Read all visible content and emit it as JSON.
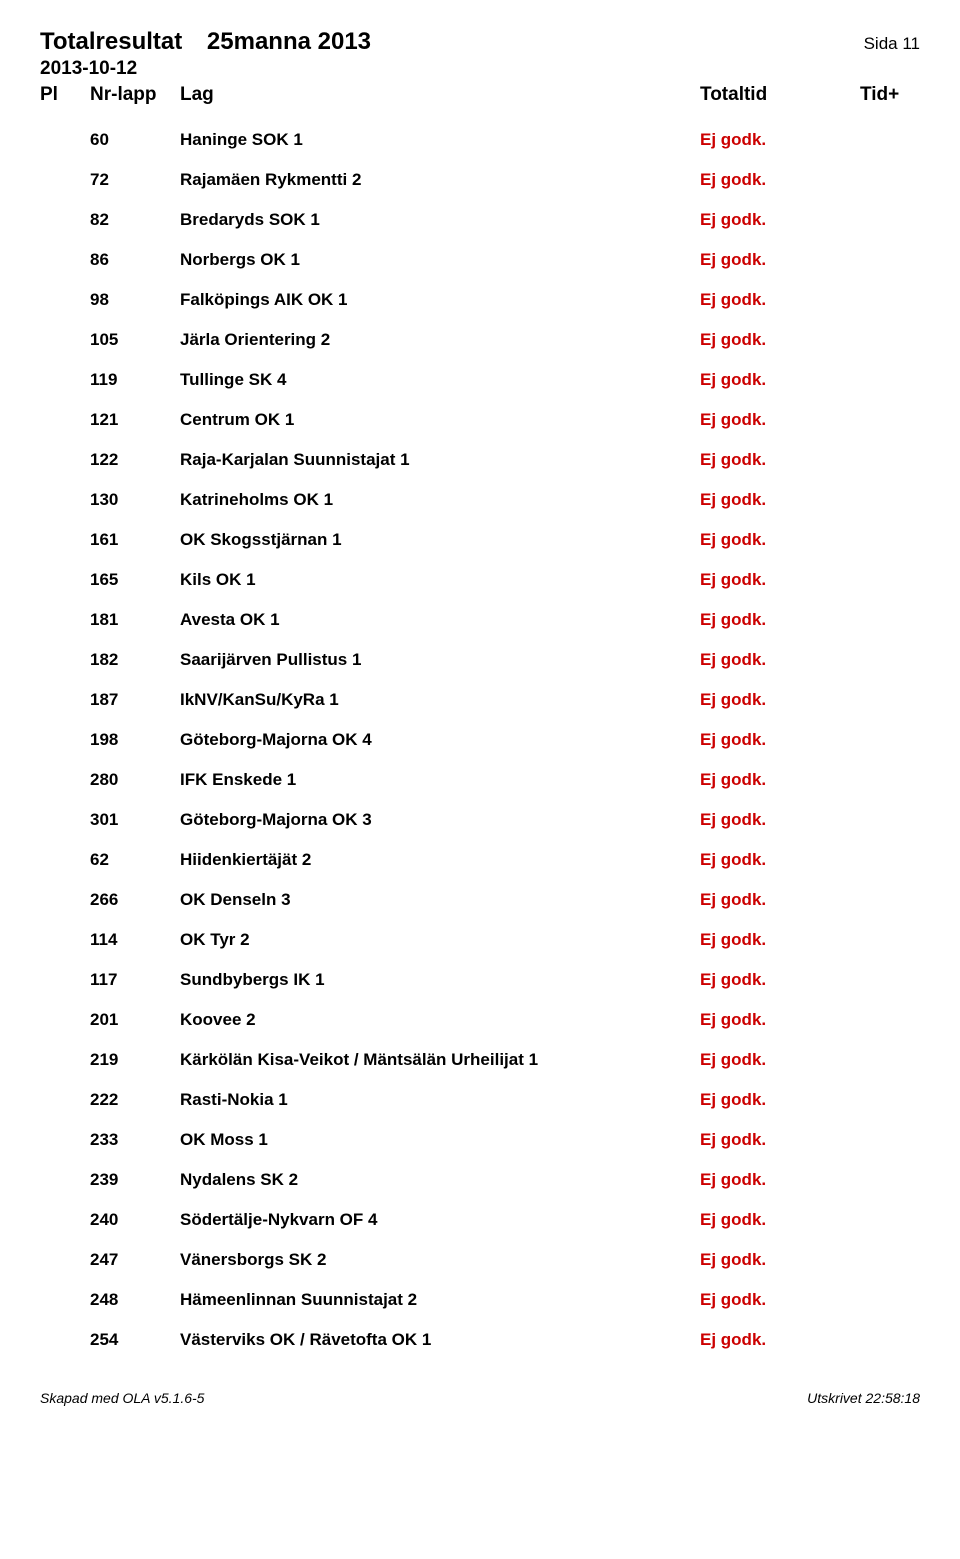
{
  "header": {
    "title_left": "Totalresultat",
    "title_right": "25manna 2013",
    "page_label": "Sida 11",
    "date": "2013-10-12"
  },
  "columns": {
    "pl": "Pl",
    "nr": "Nr-lapp",
    "lag": "Lag",
    "tot": "Totaltid",
    "tid": "Tid+"
  },
  "status_color": "#cc0000",
  "rows": [
    {
      "nr": "60",
      "lag": "Haninge SOK 1",
      "tot": "Ej godk."
    },
    {
      "nr": "72",
      "lag": "Rajamäen Rykmentti 2",
      "tot": "Ej godk."
    },
    {
      "nr": "82",
      "lag": "Bredaryds SOK 1",
      "tot": "Ej godk."
    },
    {
      "nr": "86",
      "lag": "Norbergs OK 1",
      "tot": "Ej godk."
    },
    {
      "nr": "98",
      "lag": "Falköpings AIK OK 1",
      "tot": "Ej godk."
    },
    {
      "nr": "105",
      "lag": "Järla Orientering 2",
      "tot": "Ej godk."
    },
    {
      "nr": "119",
      "lag": "Tullinge SK 4",
      "tot": "Ej godk."
    },
    {
      "nr": "121",
      "lag": "Centrum OK 1",
      "tot": "Ej godk."
    },
    {
      "nr": "122",
      "lag": "Raja-Karjalan Suunnistajat 1",
      "tot": "Ej godk."
    },
    {
      "nr": "130",
      "lag": "Katrineholms OK 1",
      "tot": "Ej godk."
    },
    {
      "nr": "161",
      "lag": "OK Skogsstjärnan 1",
      "tot": "Ej godk."
    },
    {
      "nr": "165",
      "lag": "Kils OK 1",
      "tot": "Ej godk."
    },
    {
      "nr": "181",
      "lag": "Avesta OK 1",
      "tot": "Ej godk."
    },
    {
      "nr": "182",
      "lag": "Saarijärven Pullistus 1",
      "tot": "Ej godk."
    },
    {
      "nr": "187",
      "lag": "IkNV/KanSu/KyRa  1",
      "tot": "Ej godk."
    },
    {
      "nr": "198",
      "lag": "Göteborg-Majorna OK 4",
      "tot": "Ej godk."
    },
    {
      "nr": "280",
      "lag": "IFK Enskede 1",
      "tot": "Ej godk."
    },
    {
      "nr": "301",
      "lag": "Göteborg-Majorna OK 3",
      "tot": "Ej godk."
    },
    {
      "nr": "62",
      "lag": "Hiidenkiertäjät 2",
      "tot": "Ej godk."
    },
    {
      "nr": "266",
      "lag": "OK Denseln 3",
      "tot": "Ej godk."
    },
    {
      "nr": "114",
      "lag": "OK Tyr 2",
      "tot": "Ej godk."
    },
    {
      "nr": "117",
      "lag": "Sundbybergs IK 1",
      "tot": "Ej godk."
    },
    {
      "nr": "201",
      "lag": "Koovee 2",
      "tot": "Ej godk."
    },
    {
      "nr": "219",
      "lag": "Kärkölän Kisa-Veikot / Mäntsälän Urheilijat 1",
      "tot": "Ej godk."
    },
    {
      "nr": "222",
      "lag": "Rasti-Nokia 1",
      "tot": "Ej godk."
    },
    {
      "nr": "233",
      "lag": "OK Moss 1",
      "tot": "Ej godk."
    },
    {
      "nr": "239",
      "lag": "Nydalens SK 2",
      "tot": "Ej godk."
    },
    {
      "nr": "240",
      "lag": "Södertälje-Nykvarn OF 4",
      "tot": "Ej godk."
    },
    {
      "nr": "247",
      "lag": "Vänersborgs SK 2",
      "tot": "Ej godk."
    },
    {
      "nr": "248",
      "lag": "Hämeenlinnan Suunnistajat 2",
      "tot": "Ej godk."
    },
    {
      "nr": "254",
      "lag": "Västerviks OK / Rävetofta OK 1",
      "tot": "Ej godk."
    }
  ],
  "footer": {
    "left": "Skapad med OLA v5.1.6-5",
    "right": "Utskrivet 22:58:18"
  }
}
